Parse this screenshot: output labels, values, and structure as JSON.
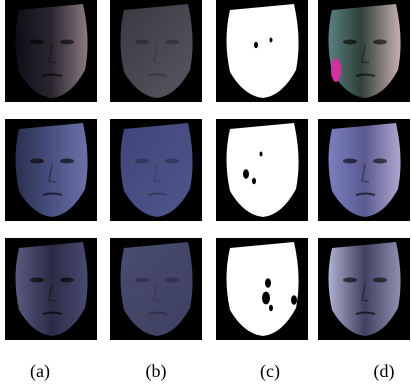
{
  "figure": {
    "panel_labels": [
      "(a)",
      "(b)",
      "(c)",
      "(d)"
    ]
  }
}
